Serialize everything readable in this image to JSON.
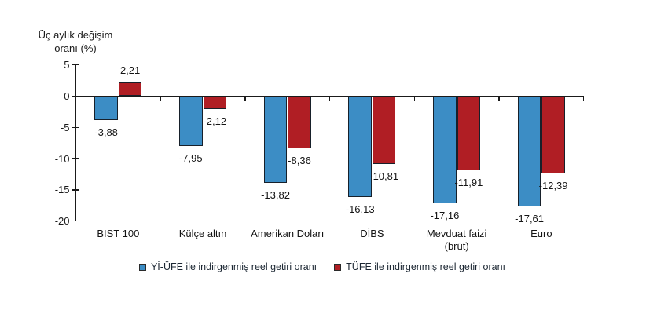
{
  "chart_data": {
    "type": "bar",
    "title": "",
    "ylabel": "Üç aylık değişim oranı (%)",
    "xlabel": "",
    "categories": [
      "BIST 100",
      "Külçe altın",
      "Amerikan Doları",
      "DİBS",
      "Mevduat faizi (brüt)",
      "Euro"
    ],
    "series": [
      {
        "name": "Yİ-ÜFE ile indirgenmiş reel getiri oranı",
        "color": "#3C8DC5",
        "values": [
          -3.88,
          -7.95,
          -13.82,
          -16.13,
          -17.16,
          -17.61
        ],
        "value_labels": [
          "-3,88",
          "-7,95",
          "-13,82",
          "-16,13",
          "-17,16",
          "-17,61"
        ]
      },
      {
        "name": "TÜFE ile indirgenmiş reel getiri oranı",
        "color": "#B01E24",
        "values": [
          2.21,
          -2.12,
          -8.36,
          -10.81,
          -11.91,
          -12.39
        ],
        "value_labels": [
          "2,21",
          "-2,12",
          "-8,36",
          "-10,81",
          "-11,91",
          "-12,39"
        ]
      }
    ],
    "yticks": [
      5,
      0,
      -5,
      -10,
      -15,
      -20
    ],
    "ytick_labels": [
      "5",
      "0",
      "-5",
      "-10",
      "-15",
      "-20"
    ],
    "ylim": [
      -20,
      5
    ],
    "grid": false,
    "legend_position": "bottom"
  }
}
